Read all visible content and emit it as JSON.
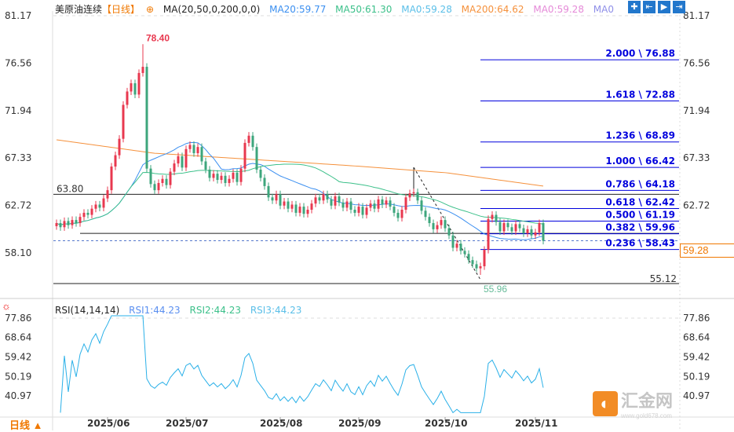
{
  "header": {
    "symbol": "美原油连续",
    "period_tag": "【日线】",
    "ma_label": "MA(20,50,0,200,0,0)",
    "ma20": "MA20:59.77",
    "ma50": "MA50:61.30",
    "ma0a": "MA0:59.28",
    "ma200": "MA200:64.62",
    "ma0b": "MA0:59.28",
    "ma0c": "MA0"
  },
  "toolbar": [
    "crosshair-icon",
    "zoom-range-icon",
    "play-icon",
    "scroll-end-icon"
  ],
  "rsi_header": {
    "label": "RSI(14,14,14)",
    "rsi1": "RSI1:44.23",
    "rsi2": "RSI2:44.23",
    "rsi3": "RSI3:44.23"
  },
  "period_label": "日线 ▲",
  "current_price": "59.28",
  "watermark": {
    "brand": "汇金网",
    "url": "www.gold678.com"
  },
  "colors": {
    "up": "#e8384f",
    "down": "#3da67c",
    "ma20": "#3b8ff0",
    "ma50": "#3cc08a",
    "ma200": "#f5913c",
    "fib": "#0000dd",
    "rsi": "#2ab0e8"
  },
  "chart_data": {
    "type": "candlestick",
    "title": "美原油连续 日线",
    "price_axis_ticks": [
      "81.17",
      "76.56",
      "71.94",
      "67.33",
      "62.72",
      "58.10"
    ],
    "price_range": [
      53.5,
      81.17
    ],
    "date_ticks": [
      "2025/06",
      "2025/07",
      "2025/08",
      "2025/09",
      "2025/10",
      "2025/11"
    ],
    "date_tick_index": [
      13,
      33,
      57,
      77,
      99,
      122
    ],
    "closes": [
      61.0,
      60.6,
      61.2,
      60.8,
      61.3,
      61.0,
      61.6,
      62.0,
      61.8,
      62.4,
      62.8,
      62.5,
      63.4,
      64.2,
      66.5,
      67.6,
      69.2,
      72.5,
      73.8,
      74.6,
      73.5,
      75.6,
      76.2,
      66.3,
      64.8,
      64.2,
      64.9,
      65.3,
      64.7,
      66.0,
      66.8,
      67.5,
      66.4,
      68.2,
      68.6,
      67.8,
      68.4,
      67.0,
      66.2,
      65.4,
      65.8,
      65.2,
      65.6,
      64.9,
      65.3,
      65.9,
      65.0,
      66.3,
      68.8,
      69.5,
      68.4,
      66.2,
      65.4,
      64.6,
      63.5,
      63.2,
      63.8,
      62.7,
      63.1,
      62.4,
      62.8,
      62.0,
      62.6,
      61.9,
      62.3,
      62.9,
      63.5,
      63.2,
      63.8,
      63.3,
      62.7,
      63.6,
      63.0,
      62.5,
      63.1,
      62.3,
      62.0,
      62.6,
      61.8,
      62.5,
      62.9,
      62.4,
      63.3,
      62.8,
      63.2,
      62.6,
      62.0,
      61.5,
      62.3,
      63.5,
      63.9,
      64.0,
      63.2,
      62.2,
      61.6,
      61.0,
      60.4,
      60.8,
      61.3,
      60.5,
      59.8,
      58.6,
      59.0,
      58.3,
      58.0,
      57.4,
      57.0,
      56.6,
      56.8,
      58.4,
      61.4,
      61.8,
      61.1,
      60.2,
      61.0,
      60.6,
      60.2,
      60.9,
      60.5,
      60.0,
      60.4,
      59.8,
      60.1,
      61.0,
      59.28
    ],
    "ma200_anchors": [
      69.1,
      67.8,
      67.2,
      66.6,
      65.9,
      64.6
    ],
    "high_label": "78.40",
    "high_index": 22,
    "low_label": "55.96",
    "low_index": 108,
    "fibonacci": [
      {
        "label": "2.000 \\ 76.88",
        "price": 76.88
      },
      {
        "label": "1.618 \\ 72.88",
        "price": 72.88
      },
      {
        "label": "1.236 \\ 68.89",
        "price": 68.89
      },
      {
        "label": "1.000 \\ 66.42",
        "price": 66.42
      },
      {
        "label": "0.786 \\ 64.18",
        "price": 64.18
      },
      {
        "label": "0.618 \\ 62.42",
        "price": 62.42
      },
      {
        "label": "0.500 \\ 61.19",
        "price": 61.19
      },
      {
        "label": "0.382 \\ 59.96",
        "price": 59.96
      },
      {
        "label": "0.236 \\ 58.43",
        "price": 58.43
      }
    ],
    "horizontal_lines": [
      {
        "label": "63.80",
        "price": 63.8
      },
      {
        "label": "55.12",
        "price": 55.12
      },
      {
        "label": "",
        "price": 60.0
      }
    ],
    "rsi": {
      "period": 14,
      "axis_ticks": [
        "77.86",
        "68.64",
        "59.42",
        "50.19",
        "40.97"
      ],
      "range": [
        33,
        80
      ],
      "last": 44.23
    }
  }
}
